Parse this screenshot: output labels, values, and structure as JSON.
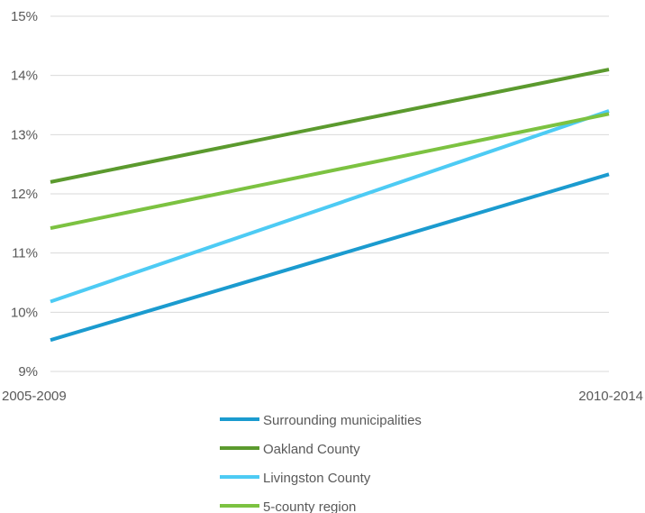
{
  "chart_data": {
    "type": "line",
    "title": "",
    "xlabel": "",
    "ylabel": "",
    "categories": [
      "2005-2009",
      "2010-2014"
    ],
    "ylim": [
      9,
      15
    ],
    "yticks": [
      9,
      10,
      11,
      12,
      13,
      14,
      15
    ],
    "ytick_labels": [
      "9%",
      "10%",
      "11%",
      "12%",
      "13%",
      "14%",
      "15%"
    ],
    "grid": true,
    "legend_position": "bottom",
    "series": [
      {
        "name": "Surrounding municipalities",
        "values": [
          9.53,
          12.33
        ],
        "color": "#1b9bcf"
      },
      {
        "name": "Oakland County",
        "values": [
          12.2,
          14.1
        ],
        "color": "#5b9a2e"
      },
      {
        "name": "Livingston County",
        "values": [
          10.18,
          13.4
        ],
        "color": "#4dcbf4"
      },
      {
        "name": "5-county region",
        "values": [
          11.42,
          13.35
        ],
        "color": "#7cc241"
      }
    ]
  }
}
